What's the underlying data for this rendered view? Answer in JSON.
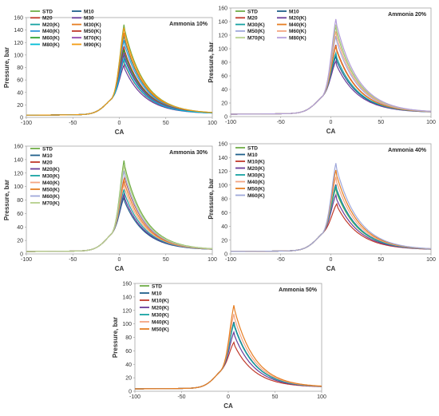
{
  "chart_data": [
    {
      "type": "line",
      "title": "Ammonia 10%",
      "xlabel": "CA",
      "ylabel": "Pressure, bar",
      "xlim": [
        -100,
        100
      ],
      "ylim": [
        0,
        160
      ],
      "xticks": [
        "-100",
        "-50",
        "0",
        "50",
        "100"
      ],
      "yticks": [
        "0",
        "20",
        "40",
        "60",
        "80",
        "100",
        "120",
        "140",
        "160"
      ],
      "legend": "top-left, two columns",
      "series": [
        {
          "name": "STD",
          "color": "#70ad47",
          "peak_x": 5,
          "peak_y": 145
        },
        {
          "name": "M10",
          "color": "#1f5f8b",
          "peak_x": 5,
          "peak_y": 97
        },
        {
          "name": "M20",
          "color": "#c0392b",
          "peak_x": 5,
          "peak_y": 88
        },
        {
          "name": "M30",
          "color": "#6a3d9a",
          "peak_x": 5,
          "peak_y": 80
        },
        {
          "name": "M20(K)",
          "color": "#17a2a2",
          "peak_x": 5,
          "peak_y": 128
        },
        {
          "name": "M30(K)",
          "color": "#e67e22",
          "peak_x": 5,
          "peak_y": 132
        },
        {
          "name": "M40(K)",
          "color": "#3498db",
          "peak_x": 5,
          "peak_y": 120
        },
        {
          "name": "M50(K)",
          "color": "#c0392b",
          "peak_x": 5,
          "peak_y": 110
        },
        {
          "name": "M60(K)",
          "color": "#2ca02c",
          "peak_x": 5,
          "peak_y": 105
        },
        {
          "name": "M70(K)",
          "color": "#8e44ad",
          "peak_x": 5,
          "peak_y": 100
        },
        {
          "name": "M80(K)",
          "color": "#00bcd4",
          "peak_x": 5,
          "peak_y": 90
        },
        {
          "name": "M90(K)",
          "color": "#f39c12",
          "peak_x": 5,
          "peak_y": 140
        }
      ]
    },
    {
      "type": "line",
      "title": "Ammonia 20%",
      "xlabel": "CA",
      "ylabel": "Pressure, bar",
      "xlim": [
        -100,
        100
      ],
      "ylim": [
        0,
        160
      ],
      "xticks": [
        "-100",
        "-50",
        "0",
        "50",
        "100"
      ],
      "yticks": [
        "0",
        "20",
        "40",
        "60",
        "80",
        "100",
        "120",
        "140",
        "160"
      ],
      "legend": "top-left, two columns",
      "series": [
        {
          "name": "STD",
          "color": "#70ad47",
          "peak_x": 5,
          "peak_y": 130
        },
        {
          "name": "M10",
          "color": "#1f5f8b",
          "peak_x": 5,
          "peak_y": 85
        },
        {
          "name": "M20",
          "color": "#c0392b",
          "peak_x": 5,
          "peak_y": 102
        },
        {
          "name": "M20(K)",
          "color": "#6a3d9a",
          "peak_x": 5,
          "peak_y": 78
        },
        {
          "name": "M30(K)",
          "color": "#17a2a2",
          "peak_x": 5,
          "peak_y": 90
        },
        {
          "name": "M40(K)",
          "color": "#e67e22",
          "peak_x": 5,
          "peak_y": 100
        },
        {
          "name": "M50(K)",
          "color": "#9fa8da",
          "peak_x": 5,
          "peak_y": 115
        },
        {
          "name": "M60(K)",
          "color": "#f4a582",
          "peak_x": 5,
          "peak_y": 122
        },
        {
          "name": "M70(K)",
          "color": "#b5d08a",
          "peak_x": 5,
          "peak_y": 132
        },
        {
          "name": "M80(K)",
          "color": "#b39ddb",
          "peak_x": 5,
          "peak_y": 140
        }
      ]
    },
    {
      "type": "line",
      "title": "Ammonia 30%",
      "xlabel": "CA",
      "ylabel": "Pressure, bar",
      "xlim": [
        -100,
        100
      ],
      "ylim": [
        0,
        160
      ],
      "xticks": [
        "-100",
        "-50",
        "0",
        "50",
        "100"
      ],
      "yticks": [
        "0",
        "20",
        "40",
        "60",
        "80",
        "100",
        "120",
        "140",
        "160"
      ],
      "legend": "top-left",
      "series": [
        {
          "name": "STD",
          "color": "#70ad47",
          "peak_x": 5,
          "peak_y": 135
        },
        {
          "name": "M10",
          "color": "#1f5f8b",
          "peak_x": 5,
          "peak_y": 80
        },
        {
          "name": "M20",
          "color": "#c0392b",
          "peak_x": 6,
          "peak_y": 112
        },
        {
          "name": "M20(K)",
          "color": "#6a3d9a",
          "peak_x": 5,
          "peak_y": 85
        },
        {
          "name": "M30(K)",
          "color": "#17a2a2",
          "peak_x": 5,
          "peak_y": 92
        },
        {
          "name": "M40(K)",
          "color": "#f4a582",
          "peak_x": 5,
          "peak_y": 100
        },
        {
          "name": "M50(K)",
          "color": "#e67e22",
          "peak_x": 5,
          "peak_y": 108
        },
        {
          "name": "M60(K)",
          "color": "#9fa8da",
          "peak_x": 5,
          "peak_y": 120
        },
        {
          "name": "M70(K)",
          "color": "#b5d08a",
          "peak_x": 5,
          "peak_y": 128
        }
      ]
    },
    {
      "type": "line",
      "title": "Ammonia 40%",
      "xlabel": "CA",
      "ylabel": "Pressure, bar",
      "xlim": [
        -100,
        100
      ],
      "ylim": [
        0,
        160
      ],
      "xticks": [
        "-100",
        "-50",
        "0",
        "50",
        "100"
      ],
      "yticks": [
        "0",
        "20",
        "40",
        "60",
        "80",
        "100",
        "120",
        "140",
        "160"
      ],
      "legend": "top-left",
      "series": [
        {
          "name": "STD",
          "color": "#70ad47",
          "peak_x": 5,
          "peak_y": 92
        },
        {
          "name": "M10",
          "color": "#1f5f8b",
          "peak_x": 5,
          "peak_y": 97
        },
        {
          "name": "M10(K)",
          "color": "#c0392b",
          "peak_x": 6,
          "peak_y": 70
        },
        {
          "name": "M20(K)",
          "color": "#6a3d9a",
          "peak_x": 5,
          "peak_y": 82
        },
        {
          "name": "M30(K)",
          "color": "#17a2a2",
          "peak_x": 5,
          "peak_y": 95
        },
        {
          "name": "M40(K)",
          "color": "#f4a582",
          "peak_x": 5,
          "peak_y": 108
        },
        {
          "name": "M50(K)",
          "color": "#e67e22",
          "peak_x": 5,
          "peak_y": 118
        },
        {
          "name": "M60(K)",
          "color": "#9fa8da",
          "peak_x": 5,
          "peak_y": 128
        }
      ]
    },
    {
      "type": "line",
      "title": "Ammonia 50%",
      "xlabel": "CA",
      "ylabel": "Pressure, bar",
      "xlim": [
        -100,
        100
      ],
      "ylim": [
        0,
        160
      ],
      "xticks": [
        "-100",
        "-50",
        "0",
        "50",
        "100"
      ],
      "yticks": [
        "0",
        "20",
        "40",
        "60",
        "80",
        "100",
        "120",
        "140",
        "160"
      ],
      "legend": "top-left",
      "series": [
        {
          "name": "STD",
          "color": "#70ad47",
          "peak_x": 6,
          "peak_y": 100
        },
        {
          "name": "M10",
          "color": "#1f5f8b",
          "peak_x": 6,
          "peak_y": 100
        },
        {
          "name": "M10(K)",
          "color": "#c0392b",
          "peak_x": 6,
          "peak_y": 70
        },
        {
          "name": "M20(K)",
          "color": "#6a3d9a",
          "peak_x": 6,
          "peak_y": 85
        },
        {
          "name": "M30(K)",
          "color": "#17a2a2",
          "peak_x": 6,
          "peak_y": 98
        },
        {
          "name": "M40(K)",
          "color": "#f4a582",
          "peak_x": 6,
          "peak_y": 112
        },
        {
          "name": "M50(K)",
          "color": "#e67e22",
          "peak_x": 6,
          "peak_y": 125
        }
      ]
    }
  ]
}
